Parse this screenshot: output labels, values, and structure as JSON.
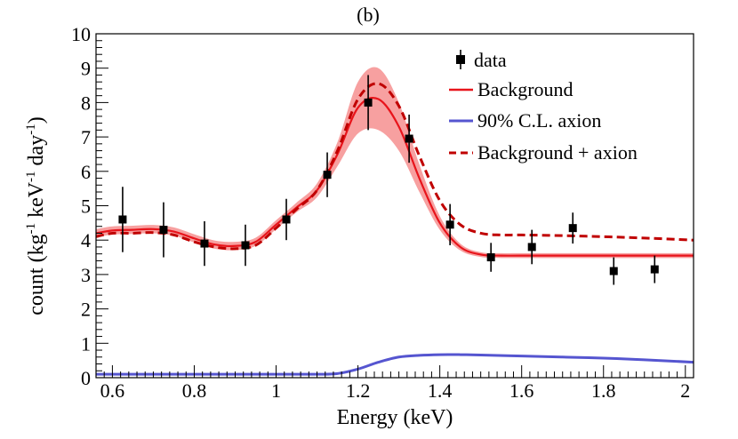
{
  "chart_data": {
    "type": "line",
    "panel_label": "(b)",
    "xlabel": "Energy (keV)",
    "ylabel": {
      "parts": [
        "count (kg",
        "-1",
        " keV",
        "-1",
        " day",
        "-1",
        ")"
      ]
    },
    "xlim": [
      0.56,
      2.02
    ],
    "ylim": [
      0,
      10
    ],
    "x_ticks": [
      0.6,
      0.8,
      1,
      1.2,
      1.4,
      1.6,
      1.8,
      2
    ],
    "x_tick_labels": [
      "0.6",
      "0.8",
      "1",
      "1.2",
      "1.4",
      "1.6",
      "1.8",
      "2"
    ],
    "y_ticks": [
      0,
      1,
      2,
      3,
      4,
      5,
      6,
      7,
      8,
      9,
      10
    ],
    "y_tick_labels": [
      "0",
      "1",
      "2",
      "3",
      "4",
      "5",
      "6",
      "7",
      "8",
      "9",
      "10"
    ],
    "grid": false,
    "legend_position": "top-right",
    "legend": [
      {
        "key": "data",
        "label": "data"
      },
      {
        "key": "background",
        "label": "Background"
      },
      {
        "key": "axion",
        "label": "90% C.L. axion"
      },
      {
        "key": "bg_axion",
        "label": "Background + axion"
      }
    ],
    "colors": {
      "background": "#e8141b",
      "band": "#f7a0a0",
      "axion": "#5555d0",
      "bg_axion": "#c00000",
      "data": "#000000"
    },
    "data_points": {
      "x": [
        0.625,
        0.725,
        0.825,
        0.925,
        1.025,
        1.125,
        1.225,
        1.325,
        1.425,
        1.525,
        1.625,
        1.725,
        1.825,
        1.925
      ],
      "y": [
        4.6,
        4.3,
        3.9,
        3.85,
        4.6,
        5.9,
        8.0,
        6.95,
        4.45,
        3.5,
        3.8,
        4.35,
        3.1,
        3.15
      ],
      "yerr": [
        0.95,
        0.8,
        0.65,
        0.6,
        0.6,
        0.65,
        0.8,
        0.7,
        0.6,
        0.42,
        0.5,
        0.45,
        0.4,
        0.4
      ]
    },
    "series": [
      {
        "name": "Background",
        "x": [
          0.56,
          0.6,
          0.65,
          0.7,
          0.75,
          0.8,
          0.85,
          0.9,
          0.95,
          1.0,
          1.05,
          1.1,
          1.15,
          1.2,
          1.25,
          1.3,
          1.35,
          1.4,
          1.45,
          1.5,
          1.55,
          1.6,
          1.7,
          1.8,
          1.9,
          2.02
        ],
        "y": [
          4.2,
          4.28,
          4.3,
          4.32,
          4.25,
          4.05,
          3.87,
          3.83,
          3.95,
          4.45,
          4.95,
          5.45,
          6.5,
          7.85,
          8.1,
          7.3,
          5.8,
          4.5,
          3.8,
          3.58,
          3.55,
          3.55,
          3.55,
          3.55,
          3.55,
          3.55
        ],
        "band_half_width": [
          0.12,
          0.12,
          0.12,
          0.12,
          0.12,
          0.12,
          0.12,
          0.12,
          0.12,
          0.13,
          0.14,
          0.2,
          0.35,
          0.75,
          0.9,
          0.7,
          0.4,
          0.2,
          0.1,
          0.07,
          0.07,
          0.07,
          0.07,
          0.07,
          0.07,
          0.07
        ]
      },
      {
        "name": "90% C.L. axion",
        "x": [
          0.56,
          0.8,
          1.0,
          1.1,
          1.15,
          1.2,
          1.25,
          1.3,
          1.35,
          1.4,
          1.45,
          1.5,
          1.6,
          1.7,
          1.8,
          1.9,
          2.02
        ],
        "y": [
          0.1,
          0.1,
          0.1,
          0.1,
          0.12,
          0.25,
          0.45,
          0.6,
          0.65,
          0.67,
          0.67,
          0.66,
          0.63,
          0.6,
          0.57,
          0.52,
          0.45
        ]
      },
      {
        "name": "Background + axion",
        "x": [
          0.56,
          0.6,
          0.65,
          0.7,
          0.75,
          0.8,
          0.85,
          0.9,
          0.95,
          1.0,
          1.05,
          1.1,
          1.15,
          1.2,
          1.25,
          1.3,
          1.35,
          1.4,
          1.45,
          1.5,
          1.55,
          1.6,
          1.7,
          1.8,
          1.9,
          2.02
        ],
        "y": [
          4.1,
          4.2,
          4.2,
          4.22,
          4.15,
          3.95,
          3.8,
          3.75,
          3.85,
          4.35,
          4.9,
          5.45,
          6.6,
          8.1,
          8.55,
          7.9,
          6.45,
          5.15,
          4.45,
          4.2,
          4.15,
          4.15,
          4.13,
          4.1,
          4.06,
          4.0
        ]
      }
    ]
  }
}
